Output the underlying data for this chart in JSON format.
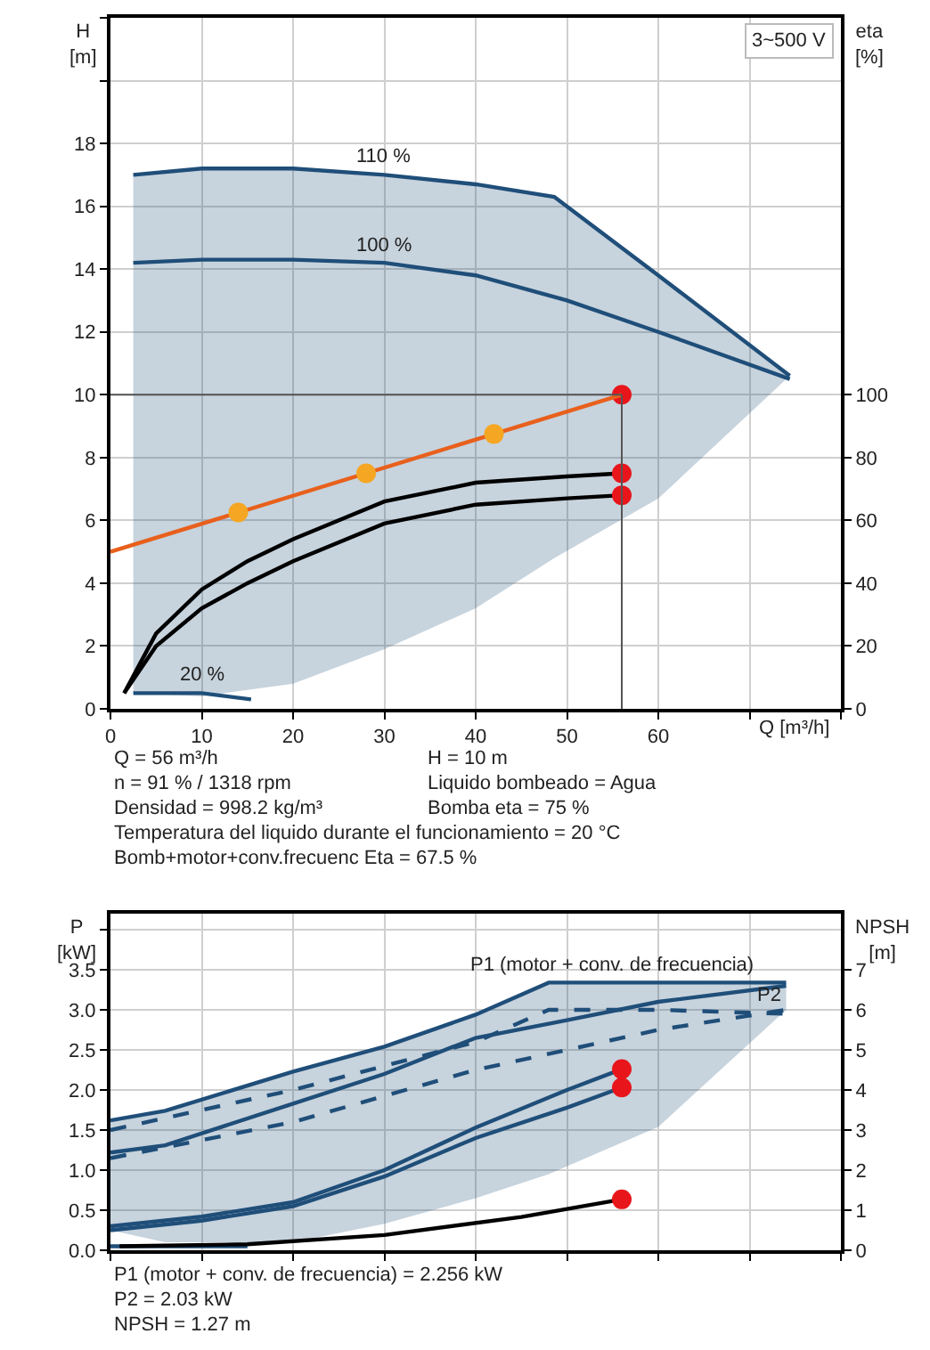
{
  "chart_data": [
    {
      "type": "line",
      "ylabel": "H [m]",
      "y2label": "eta [%]",
      "xlabel": "Q [m³/h]",
      "xlim": [
        0,
        80
      ],
      "xticks": [
        0,
        10,
        20,
        30,
        40,
        50,
        60,
        {
          "value": 70,
          "label": null
        },
        {
          "value": 80,
          "label": null
        }
      ],
      "ylim": [
        0,
        22
      ],
      "yticks": [
        0,
        2,
        4,
        6,
        8,
        10,
        12,
        14,
        16,
        18,
        {
          "value": 20,
          "label": null
        },
        {
          "value": 22,
          "label": null
        }
      ],
      "y2lim": [
        0,
        220
      ],
      "y2ticks": [
        0,
        20,
        40,
        60,
        80,
        100
      ],
      "grid": true,
      "ref_lines": [
        {
          "axis": "x",
          "value": 56,
          "color": "#555555"
        },
        {
          "axis": "y",
          "value": 10,
          "color": "#555555"
        }
      ],
      "series": [
        {
          "color": "#1f4e79",
          "x": [
            2.5,
            10,
            20,
            30,
            40,
            48.6,
            60,
            74.4
          ],
          "values": [
            17,
            17.2,
            17.2,
            17,
            16.7,
            16.3,
            13.8,
            10.6
          ],
          "lower": [
            0.5,
            0.4,
            0.8,
            1.9,
            3.2,
            4.8,
            6.7,
            10.6
          ],
          "upper": [
            17,
            17.2,
            17.2,
            17,
            16.7,
            16.3,
            13.8,
            10.6
          ]
        },
        {
          "color": "#1f4e79",
          "x": [
            2.5,
            10,
            20,
            30,
            40,
            50,
            60,
            74.4
          ],
          "values": [
            14.2,
            14.3,
            14.3,
            14.2,
            13.8,
            13,
            12,
            10.5
          ]
        },
        {
          "color": "#1f4e79",
          "x": [
            2.5,
            10,
            15.4
          ],
          "values": [
            0.5,
            0.5,
            0.3
          ]
        },
        {
          "color": "#000000",
          "x": [
            1.5,
            5,
            10,
            15,
            20,
            30,
            40,
            50,
            56
          ],
          "values": [
            0.5,
            2.4,
            3.8,
            4.7,
            5.4,
            6.6,
            7.2,
            7.4,
            7.5
          ]
        },
        {
          "color": "#000000",
          "x": [
            1.5,
            5,
            10,
            15,
            20,
            30,
            40,
            50,
            56
          ],
          "values": [
            0.5,
            2,
            3.2,
            4,
            4.7,
            5.9,
            6.5,
            6.7,
            6.8
          ]
        },
        {
          "color": "#e8601c",
          "axis": "y2",
          "x": [
            0,
            56
          ],
          "values": [
            50,
            100
          ]
        },
        {
          "type": "scatter",
          "color": "#f5a623",
          "axis": "y2",
          "x": [
            14,
            28,
            42
          ],
          "values": [
            62.5,
            75,
            87.5
          ]
        },
        {
          "type": "scatter",
          "color": "#e8151b",
          "x": [
            56,
            56,
            56
          ],
          "values": [
            10,
            7.5,
            6.8
          ]
        }
      ],
      "annotations": [
        "3~500 V",
        {
          "text": "110 %",
          "x": 30,
          "y": 17
        },
        {
          "text": "100 %",
          "x": 30,
          "y": 14.2
        },
        {
          "text": "20 %",
          "x": 10,
          "y": 0.5
        },
        "Q = 56 m³/h",
        "H = 10 m",
        "n = 91 % / 1318 rpm",
        "Liquido bombeado = Agua",
        "Densidad = 998.2 kg/m³",
        "Bomba eta = 75 %",
        "Temperatura del liquido durante el funcionamiento = 20 °C",
        "Bomb+motor+conv.frecuenc Eta = 67.5 %"
      ]
    },
    {
      "type": "line",
      "ylabel": "P [kW]",
      "y2label": "NPSH [m]",
      "tick_labels": "y",
      "xlim": [
        0,
        80
      ],
      "xticks": [
        0,
        10,
        20,
        30,
        40,
        50,
        60,
        70,
        80
      ],
      "ylim": [
        0,
        4.2
      ],
      "yticks": [
        {
          "value": 0,
          "label": "0.0"
        },
        0.5,
        {
          "value": 1,
          "label": "1.0"
        },
        1.5,
        {
          "value": 2,
          "label": "2.0"
        },
        2.5,
        {
          "value": 3,
          "label": "3.0"
        },
        3.5,
        {
          "value": 4,
          "label": null
        }
      ],
      "y2lim": [
        0,
        8.4
      ],
      "y2ticks": [
        0,
        1,
        2,
        3,
        4,
        5,
        6,
        7
      ],
      "grid": true,
      "series": [
        {
          "color": "#1f4e79",
          "x": [
            0,
            6,
            20,
            30,
            40,
            48,
            60,
            74
          ],
          "values": [
            1.62,
            1.74,
            2.23,
            2.54,
            2.94,
            3.34,
            3.34,
            3.34
          ],
          "lower": [
            0.25,
            0.1,
            0.1,
            0.33,
            0.65,
            0.95,
            1.54,
            3.0
          ],
          "upper": [
            1.62,
            1.74,
            2.23,
            2.54,
            2.94,
            3.34,
            3.34,
            3.34
          ]
        },
        {
          "color": "#1f4e79",
          "x": [
            0,
            6,
            20,
            30,
            40,
            50,
            60,
            74
          ],
          "values": [
            1.22,
            1.31,
            1.83,
            2.2,
            2.65,
            2.87,
            3.1,
            3.3
          ]
        },
        {
          "color": "#1f4e79",
          "line_style": "dashed",
          "x": [
            0,
            20,
            40,
            48,
            60,
            74
          ],
          "values": [
            1.5,
            2.0,
            2.6,
            3.0,
            3.0,
            2.95
          ]
        },
        {
          "color": "#1f4e79",
          "line_style": "dashed",
          "x": [
            0,
            20,
            40,
            60,
            74
          ],
          "values": [
            1.15,
            1.6,
            2.25,
            2.75,
            3.0
          ]
        },
        {
          "color": "#1f4e79",
          "x": [
            0,
            10,
            20,
            30,
            40,
            50,
            56
          ],
          "values": [
            0.3,
            0.42,
            0.6,
            1.0,
            1.53,
            2.0,
            2.26
          ]
        },
        {
          "color": "#1f4e79",
          "x": [
            0,
            10,
            20,
            30,
            40,
            50,
            56
          ],
          "values": [
            0.25,
            0.37,
            0.55,
            0.92,
            1.4,
            1.78,
            2.03
          ]
        },
        {
          "color": "#1f4e79",
          "x": [
            0,
            15
          ],
          "values": [
            0.05,
            0.05
          ]
        },
        {
          "color": "#000000",
          "axis": "y2",
          "x": [
            1,
            15,
            30,
            45,
            56
          ],
          "values": [
            0.1,
            0.15,
            0.38,
            0.83,
            1.27
          ]
        },
        {
          "type": "scatter",
          "color": "#e8151b",
          "x": [
            56,
            56
          ],
          "values": [
            2.26,
            2.03
          ]
        },
        {
          "type": "scatter",
          "color": "#e8151b",
          "axis": "y2",
          "x": [
            56
          ],
          "values": [
            1.27
          ]
        }
      ],
      "annotations": [
        {
          "text": "P1 (motor + conv. de frecuencia)",
          "x": 55,
          "y": 3.34
        },
        {
          "text": "P2",
          "x": 72,
          "y": 2.96
        },
        "P1 (motor + conv. de frecuencia) = 2.256 kW",
        "P2 = 2.03 kW",
        "NPSH = 1.27 m"
      ]
    }
  ]
}
